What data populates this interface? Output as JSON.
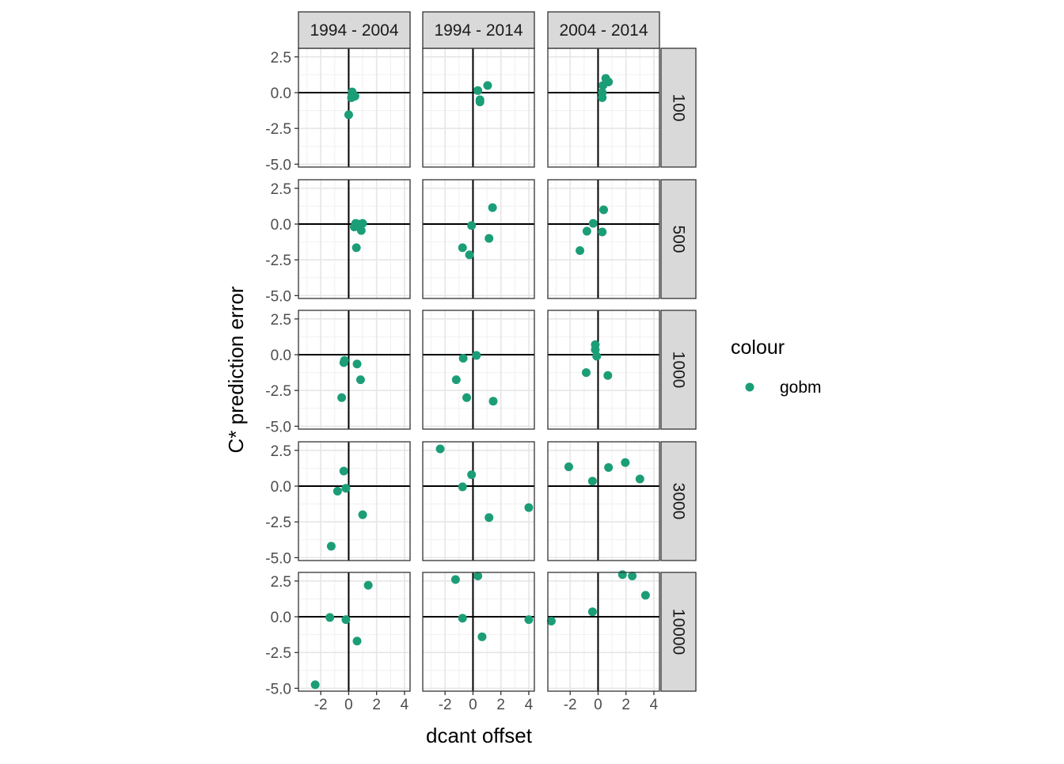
{
  "chart_data": {
    "type": "scatter",
    "xlabel": "dcant offset",
    "ylabel": "C* prediction error",
    "xlim": [
      -3.6,
      4.4
    ],
    "ylim": [
      -5.2,
      3.1
    ],
    "x_ticks": [
      -2,
      0,
      2,
      4
    ],
    "x_tick_labels": [
      "-2",
      "0",
      "2",
      "4"
    ],
    "y_ticks": [
      2.5,
      0.0,
      -2.5,
      -5.0
    ],
    "y_tick_labels": [
      "2.5",
      "0.0",
      "-2.5",
      "-5.0"
    ],
    "grid": true,
    "reference_lines": {
      "x": 0,
      "y": 0
    },
    "point_color": "#1B9E77",
    "facet_cols": [
      "1994 - 2004",
      "1994 - 2014",
      "2004 - 2014"
    ],
    "facet_rows": [
      "100",
      "500",
      "1000",
      "3000",
      "10000"
    ],
    "legend": {
      "title": "colour",
      "placement": "right",
      "entries": [
        "gobm"
      ]
    },
    "panels": [
      {
        "row": "100",
        "col": "1994 - 2004",
        "points": [
          [
            0.25,
            0.05
          ],
          [
            0.35,
            -0.2
          ],
          [
            0.2,
            -0.35
          ],
          [
            0.45,
            -0.25
          ],
          [
            0.0,
            -1.55
          ]
        ]
      },
      {
        "row": "100",
        "col": "1994 - 2014",
        "points": [
          [
            0.35,
            0.15
          ],
          [
            1.05,
            0.5
          ],
          [
            0.5,
            -0.5
          ],
          [
            0.5,
            -0.65
          ]
        ]
      },
      {
        "row": "100",
        "col": "2004 - 2014",
        "points": [
          [
            0.55,
            1.0
          ],
          [
            0.75,
            0.75
          ],
          [
            0.35,
            0.5
          ],
          [
            0.3,
            0.0
          ],
          [
            0.3,
            -0.35
          ]
        ]
      },
      {
        "row": "500",
        "col": "1994 - 2004",
        "points": [
          [
            0.5,
            0.05
          ],
          [
            0.7,
            0.0
          ],
          [
            1.0,
            0.05
          ],
          [
            0.4,
            -0.2
          ],
          [
            0.9,
            -0.45
          ],
          [
            0.55,
            -1.65
          ]
        ]
      },
      {
        "row": "500",
        "col": "1994 - 2014",
        "points": [
          [
            1.4,
            1.15
          ],
          [
            -0.1,
            -0.1
          ],
          [
            1.15,
            -1.0
          ],
          [
            -0.75,
            -1.65
          ],
          [
            -0.25,
            -2.15
          ]
        ]
      },
      {
        "row": "500",
        "col": "2004 - 2014",
        "points": [
          [
            0.4,
            1.0
          ],
          [
            -0.35,
            0.05
          ],
          [
            -0.8,
            -0.5
          ],
          [
            0.3,
            -0.55
          ],
          [
            -1.3,
            -1.85
          ]
        ]
      },
      {
        "row": "1000",
        "col": "1994 - 2004",
        "points": [
          [
            -0.3,
            -0.4
          ],
          [
            0.6,
            -0.65
          ],
          [
            -0.35,
            -0.55
          ],
          [
            0.85,
            -1.75
          ],
          [
            -0.5,
            -3.0
          ]
        ]
      },
      {
        "row": "1000",
        "col": "1994 - 2014",
        "points": [
          [
            0.25,
            -0.05
          ],
          [
            -0.7,
            -0.25
          ],
          [
            -1.2,
            -1.75
          ],
          [
            -0.45,
            -3.0
          ],
          [
            1.45,
            -3.25
          ]
        ]
      },
      {
        "row": "1000",
        "col": "2004 - 2014",
        "points": [
          [
            -0.2,
            0.7
          ],
          [
            -0.2,
            0.35
          ],
          [
            -0.1,
            -0.1
          ],
          [
            -0.85,
            -1.25
          ],
          [
            0.7,
            -1.45
          ]
        ]
      },
      {
        "row": "3000",
        "col": "1994 - 2004",
        "points": [
          [
            -0.35,
            1.05
          ],
          [
            -0.2,
            -0.15
          ],
          [
            -0.8,
            -0.35
          ],
          [
            1.0,
            -2.0
          ],
          [
            -1.25,
            -4.2
          ]
        ]
      },
      {
        "row": "3000",
        "col": "1994 - 2014",
        "points": [
          [
            -2.35,
            2.6
          ],
          [
            -0.1,
            0.8
          ],
          [
            -0.75,
            -0.05
          ],
          [
            1.15,
            -2.2
          ],
          [
            4.0,
            -1.5
          ]
        ]
      },
      {
        "row": "3000",
        "col": "2004 - 2014",
        "points": [
          [
            -2.1,
            1.35
          ],
          [
            0.75,
            1.3
          ],
          [
            1.95,
            1.65
          ],
          [
            3.0,
            0.5
          ],
          [
            -0.4,
            0.35
          ]
        ]
      },
      {
        "row": "10000",
        "col": "1994 - 2004",
        "points": [
          [
            1.4,
            2.2
          ],
          [
            -1.35,
            -0.05
          ],
          [
            -0.2,
            -0.2
          ],
          [
            0.6,
            -1.7
          ],
          [
            -2.4,
            -4.75
          ]
        ]
      },
      {
        "row": "10000",
        "col": "1994 - 2014",
        "points": [
          [
            0.35,
            2.85
          ],
          [
            -1.25,
            2.6
          ],
          [
            -0.75,
            -0.1
          ],
          [
            0.65,
            -1.4
          ],
          [
            4.0,
            -0.2
          ]
        ]
      },
      {
        "row": "10000",
        "col": "2004 - 2014",
        "points": [
          [
            1.75,
            2.95
          ],
          [
            2.45,
            2.85
          ],
          [
            3.4,
            1.5
          ],
          [
            -0.4,
            0.35
          ],
          [
            -3.35,
            -0.3
          ]
        ]
      }
    ]
  }
}
